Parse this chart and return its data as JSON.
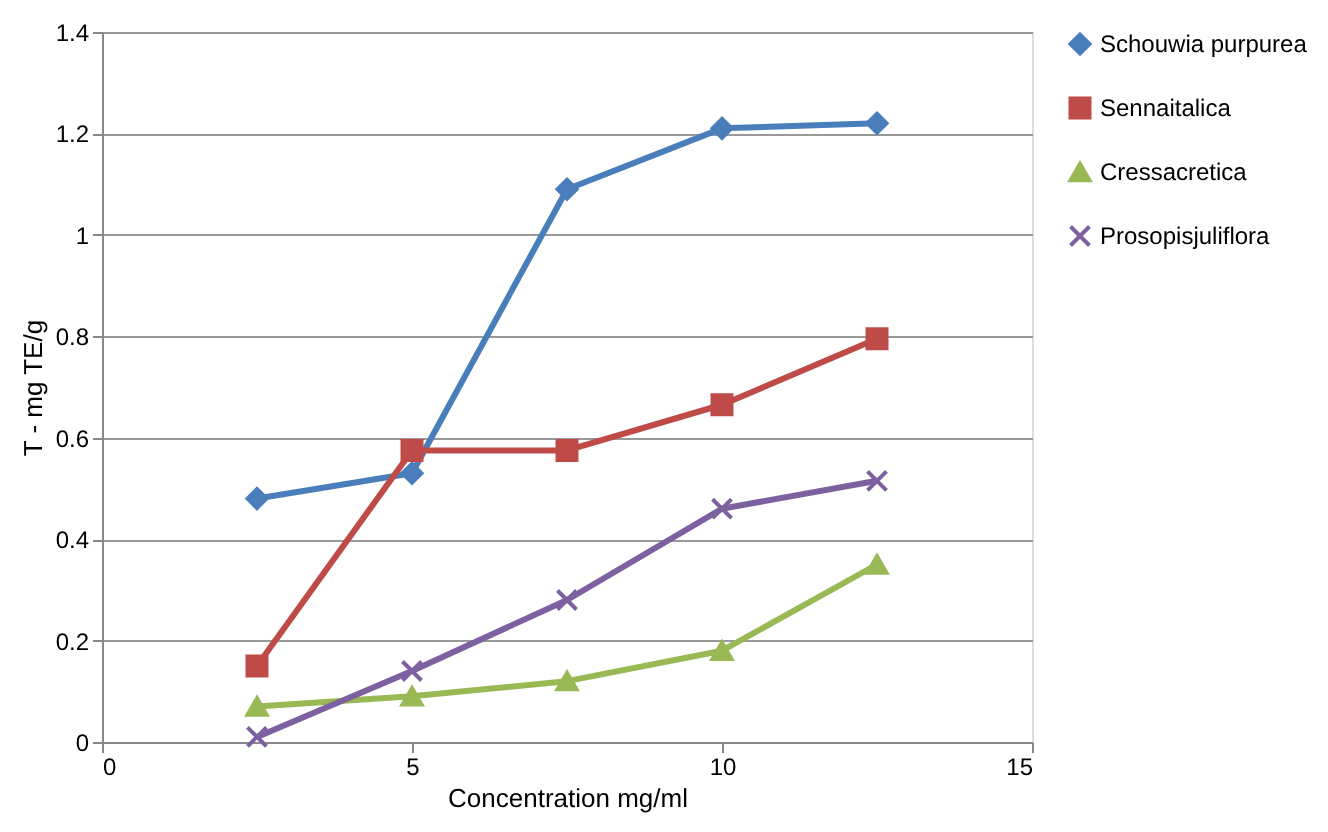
{
  "chart_data": {
    "type": "line",
    "xlabel": "Concentration mg/ml",
    "ylabel": "T - mg TE/g",
    "x": [
      2.5,
      5,
      7.5,
      10,
      12.5
    ],
    "series": [
      {
        "name": "Schouwia purpurea",
        "color": "#4a7ebb",
        "marker": "diamond",
        "values": [
          0.48,
          0.53,
          1.09,
          1.21,
          1.22
        ]
      },
      {
        "name": "Sennaitalica",
        "color": "#be4b48",
        "marker": "square",
        "values": [
          0.15,
          0.575,
          0.575,
          0.665,
          0.795
        ]
      },
      {
        "name": "Cressacretica",
        "color": "#98b954",
        "marker": "triangle",
        "values": [
          0.07,
          0.09,
          0.12,
          0.18,
          0.35
        ]
      },
      {
        "name": "Prosopisjuliflora",
        "color": "#7d60a0",
        "marker": "cross",
        "values": [
          0.01,
          0.14,
          0.28,
          0.46,
          0.515
        ]
      }
    ],
    "xlim": [
      0,
      15
    ],
    "xticks": [
      0,
      5,
      10,
      15
    ],
    "ylim": [
      0,
      1.4
    ],
    "yticks": [
      0,
      0.2,
      0.4,
      0.6,
      0.8,
      1,
      1.2,
      1.4
    ],
    "grid": "y",
    "legend": "right",
    "line_style": "solid"
  }
}
